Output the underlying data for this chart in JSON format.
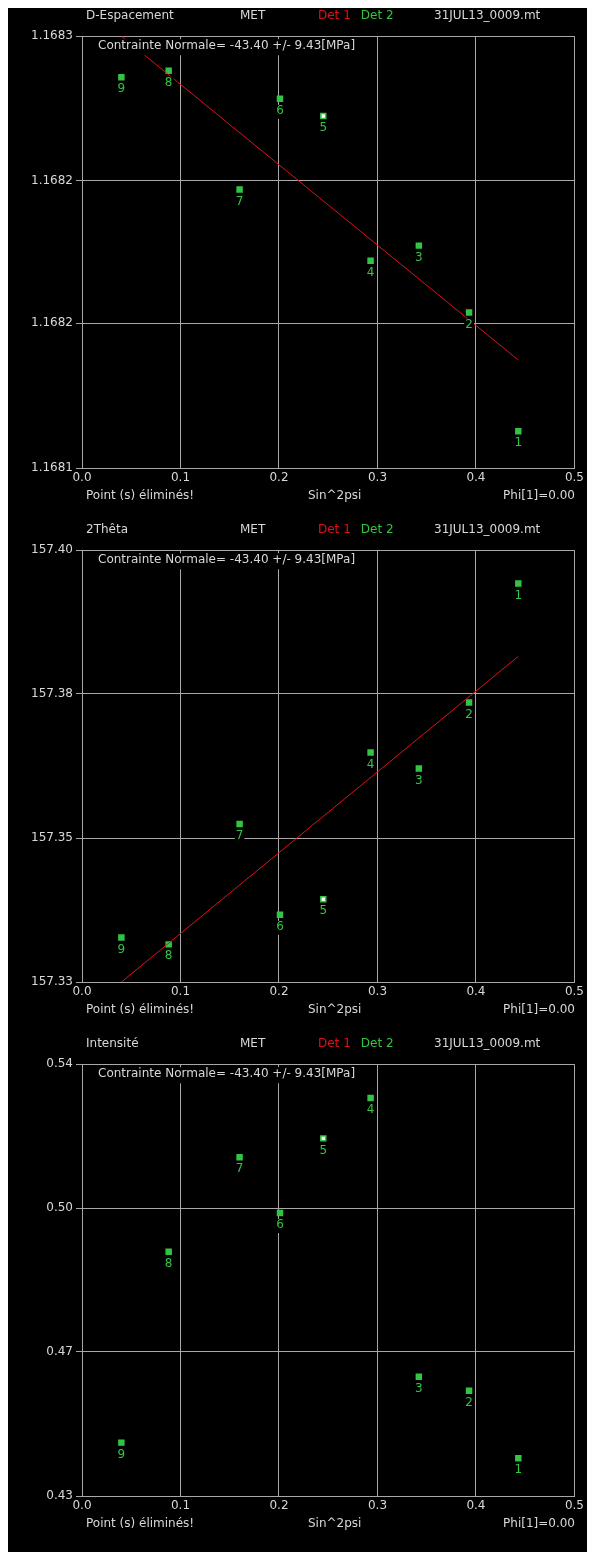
{
  "chart_data": [
    {
      "type": "scatter",
      "title": "D-Espacement",
      "subtitle": "MET",
      "xlabel": "Sin^2psi",
      "annotations": [
        "Contrainte Normale= -43.40 +/- 9.43[MPa]",
        "31JUL13_0009.mt",
        "Point (s) éliminés!",
        "Phi[1]=0.00",
        {
          "text": "1",
          "x": 0.443,
          "y": 1.168117
        },
        {
          "text": "2",
          "x": 0.393,
          "y": 1.168172
        },
        {
          "text": "3",
          "x": 0.342,
          "y": 1.168203
        },
        {
          "text": "4",
          "x": 0.293,
          "y": 1.168196
        },
        {
          "text": "5",
          "x": 0.245,
          "y": 1.168263
        },
        {
          "text": "6",
          "x": 0.201,
          "y": 1.168271
        },
        {
          "text": "7",
          "x": 0.16,
          "y": 1.168229
        },
        {
          "text": "8",
          "x": 0.088,
          "y": 1.168284
        },
        {
          "text": "9",
          "x": 0.04,
          "y": 1.168281
        }
      ],
      "series": [
        {
          "name": "Det 1",
          "type": "line",
          "color": "#e0101a",
          "x": [
            0.04,
            0.443
          ],
          "values": [
            1.1683,
            1.16815
          ]
        },
        {
          "name": "Det 2",
          "marker": "square",
          "color": "#33c444",
          "colors": [
            "#33c444",
            "#33c444",
            "#33c444",
            "#33c444",
            "#ffffff",
            "#33c444",
            "#33c444",
            "#33c444",
            "#33c444"
          ],
          "x": [
            0.443,
            0.393,
            0.342,
            0.293,
            0.245,
            0.201,
            0.16,
            0.088,
            0.04
          ],
          "values": [
            1.168117,
            1.168172,
            1.168203,
            1.168196,
            1.168263,
            1.168271,
            1.168229,
            1.168284,
            1.168281
          ]
        }
      ],
      "xlim": [
        0,
        0.5
      ],
      "xticks": [
        {
          "value": 0,
          "label": "0.0"
        },
        {
          "value": 0.1,
          "label": "0.1"
        },
        {
          "value": 0.2,
          "label": "0.2"
        },
        {
          "value": 0.3,
          "label": "0.3"
        },
        {
          "value": 0.4,
          "label": "0.4"
        },
        {
          "value": 0.5,
          "label": "0.5"
        }
      ],
      "ylim": [
        1.1681,
        1.1683
      ],
      "yticks": [
        1.1681,
        {
          "value": 1.168167,
          "label": "1.1682"
        },
        {
          "value": 1.168233,
          "label": "1.1682"
        },
        1.1683
      ],
      "grid": true,
      "legend": "top"
    },
    {
      "type": "scatter",
      "title": "2Thêta",
      "subtitle": "MET",
      "xlabel": "Sin^2psi",
      "annotations": [
        "Contrainte Normale= -43.40 +/- 9.43[MPa]",
        "31JUL13_0009.mt",
        "Point (s) éliminés!",
        "Phi[1]=0.00",
        {
          "text": "1",
          "x": 0.443,
          "y": 157.3946
        },
        {
          "text": "2",
          "x": 0.393,
          "y": 157.3753
        },
        {
          "text": "3",
          "x": 0.342,
          "y": 157.3646
        },
        {
          "text": "4",
          "x": 0.293,
          "y": 157.3672
        },
        {
          "text": "5",
          "x": 0.245,
          "y": 157.3434
        },
        {
          "text": "6",
          "x": 0.201,
          "y": 157.3409
        },
        {
          "text": "7",
          "x": 0.16,
          "y": 157.3556
        },
        {
          "text": "8",
          "x": 0.088,
          "y": 157.3361
        },
        {
          "text": "9",
          "x": 0.04,
          "y": 157.3372
        }
      ],
      "series": [
        {
          "name": "Det 1",
          "type": "line",
          "color": "#e0101a",
          "x": [
            0.04,
            0.443
          ],
          "values": [
            157.33,
            157.3828
          ]
        },
        {
          "name": "Det 2",
          "marker": "square",
          "color": "#33c444",
          "colors": [
            "#33c444",
            "#33c444",
            "#33c444",
            "#33c444",
            "#ffffff",
            "#33c444",
            "#33c444",
            "#33c444",
            "#33c444"
          ],
          "x": [
            0.443,
            0.393,
            0.342,
            0.293,
            0.245,
            0.201,
            0.16,
            0.088,
            0.04
          ],
          "values": [
            157.3946,
            157.3753,
            157.3646,
            157.3672,
            157.3434,
            157.3409,
            157.3556,
            157.3361,
            157.3372
          ]
        }
      ],
      "xlim": [
        0,
        0.5
      ],
      "xticks": [
        {
          "value": 0,
          "label": "0.0"
        },
        {
          "value": 0.1,
          "label": "0.1"
        },
        {
          "value": 0.2,
          "label": "0.2"
        },
        {
          "value": 0.3,
          "label": "0.3"
        },
        {
          "value": 0.4,
          "label": "0.4"
        },
        {
          "value": 0.5,
          "label": "0.5"
        }
      ],
      "ylim": [
        157.33,
        157.4
      ],
      "yticks": [
        157.33,
        {
          "value": 157.3533,
          "label": "157.35"
        },
        {
          "value": 157.3767,
          "label": "157.38"
        },
        {
          "value": 157.4,
          "label": "157.40"
        }
      ],
      "grid": true,
      "legend": "top"
    },
    {
      "type": "scatter",
      "title": "Intensité",
      "subtitle": "MET",
      "xlabel": "Sin^2psi",
      "annotations": [
        "Contrainte Normale= -43.40 +/- 9.43[MPa]",
        "31JUL13_0009.mt",
        "Point (s) éliminés!",
        "Phi[1]=0.00",
        {
          "text": "1",
          "x": 0.443,
          "y": 0.4396
        },
        {
          "text": "2",
          "x": 0.393,
          "y": 0.4568
        },
        {
          "text": "3",
          "x": 0.342,
          "y": 0.4604
        },
        {
          "text": "4",
          "x": 0.293,
          "y": 0.5314
        },
        {
          "text": "5",
          "x": 0.245,
          "y": 0.5211
        },
        {
          "text": "6",
          "x": 0.201,
          "y": 0.5021
        },
        {
          "text": "7",
          "x": 0.16,
          "y": 0.5163
        },
        {
          "text": "8",
          "x": 0.088,
          "y": 0.4922
        },
        {
          "text": "9",
          "x": 0.04,
          "y": 0.4436
        }
      ],
      "series": [
        {
          "name": "Det 1",
          "type": "line",
          "color": "#e0101a"
        },
        {
          "name": "Det 2",
          "marker": "square",
          "color": "#33c444",
          "colors": [
            "#33c444",
            "#33c444",
            "#33c444",
            "#33c444",
            "#ffffff",
            "#33c444",
            "#33c444",
            "#33c444",
            "#33c444"
          ],
          "x": [
            0.443,
            0.393,
            0.342,
            0.293,
            0.245,
            0.201,
            0.16,
            0.088,
            0.04
          ],
          "values": [
            0.4396,
            0.4568,
            0.4604,
            0.5314,
            0.5211,
            0.5021,
            0.5163,
            0.4922,
            0.4436
          ]
        }
      ],
      "xlim": [
        0,
        0.5
      ],
      "xticks": [
        {
          "value": 0,
          "label": "0.0"
        },
        {
          "value": 0.1,
          "label": "0.1"
        },
        {
          "value": 0.2,
          "label": "0.2"
        },
        {
          "value": 0.3,
          "label": "0.3"
        },
        {
          "value": 0.4,
          "label": "0.4"
        },
        {
          "value": 0.5,
          "label": "0.5"
        }
      ],
      "ylim": [
        0.43,
        0.54
      ],
      "yticks": [
        0.43,
        {
          "value": 0.4667,
          "label": "0.47"
        },
        {
          "value": 0.5033,
          "label": "0.50"
        },
        0.54
      ],
      "grid": true,
      "legend": "top"
    }
  ]
}
